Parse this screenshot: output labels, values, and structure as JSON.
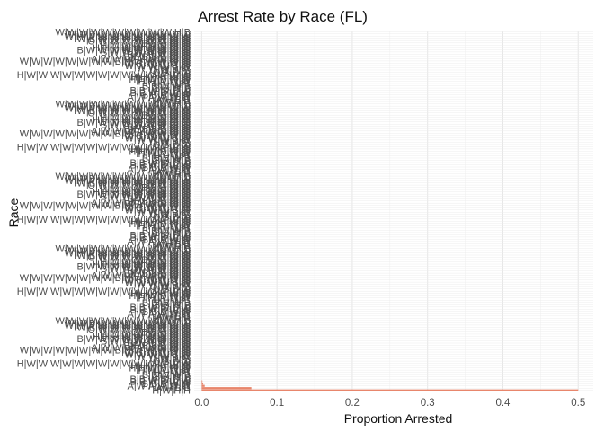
{
  "chart_data": {
    "type": "bar",
    "orientation": "horizontal",
    "title": "Arrest Rate by Race (FL)",
    "xlabel": "Proportion Arrested",
    "ylabel": "Race",
    "xlim": [
      -0.01,
      0.52
    ],
    "x_ticks": [
      0.0,
      0.1,
      0.2,
      0.3,
      0.4,
      0.5
    ],
    "x_tick_labels": [
      "0.0",
      "0.1",
      "0.2",
      "0.3",
      "0.4",
      "0.5"
    ],
    "grid": true,
    "legend": "none",
    "bar_color": "#e8866c",
    "category_count": 160,
    "categories_visible": [
      "H|W|H|H",
      "A|H|B|B",
      "A|W|A|W|W|W",
      "B|B|B|W|W",
      "B|B|W|B|W|W",
      "B|B|W|W|B|W",
      "B|B|W|B",
      "B|B|W|W|B",
      "H|H|W|B",
      "H|H|W|W|W",
      "H|H|W|B|W|W",
      "H|H|H|H|W|W",
      "H|W|W|W|W|W|W|W|W|W|W|W|W|W|W",
      "O|B|B|W",
      "O|W|W|B",
      "W|W|W|B|W",
      "W|W|W|W|B|W",
      "W|B|W|W|W|W",
      "W|W|W|W|W|W|W|W|B|H|W|W|W|W|W",
      "A|W|W|W|A|W|W|W|W",
      "B|B|B|B|B|W|W",
      "B|W|B|W|W|W",
      "B|W|W|W|W|W|W|W",
      "B|W|W|W|W|W|W|W|W|W",
      "H|H|H|W|W|W|W|W|W",
      "H|W|W|W|W|W|W|W",
      "O|B|B|H|W|W",
      "O|W|W|W|W|W|W|W|W",
      "W|B|W|W|W|W|W|W|W|W",
      "W|H|W|W|W|W|W|W|W|W|W",
      "W|W|B|W|W|W|W|W|W|W|W",
      "W|W|W|W|W|W|W|W|W|W|H|B"
    ],
    "values_top": [
      0.5,
      0.066,
      0.004,
      0.002,
      0.001
    ]
  }
}
